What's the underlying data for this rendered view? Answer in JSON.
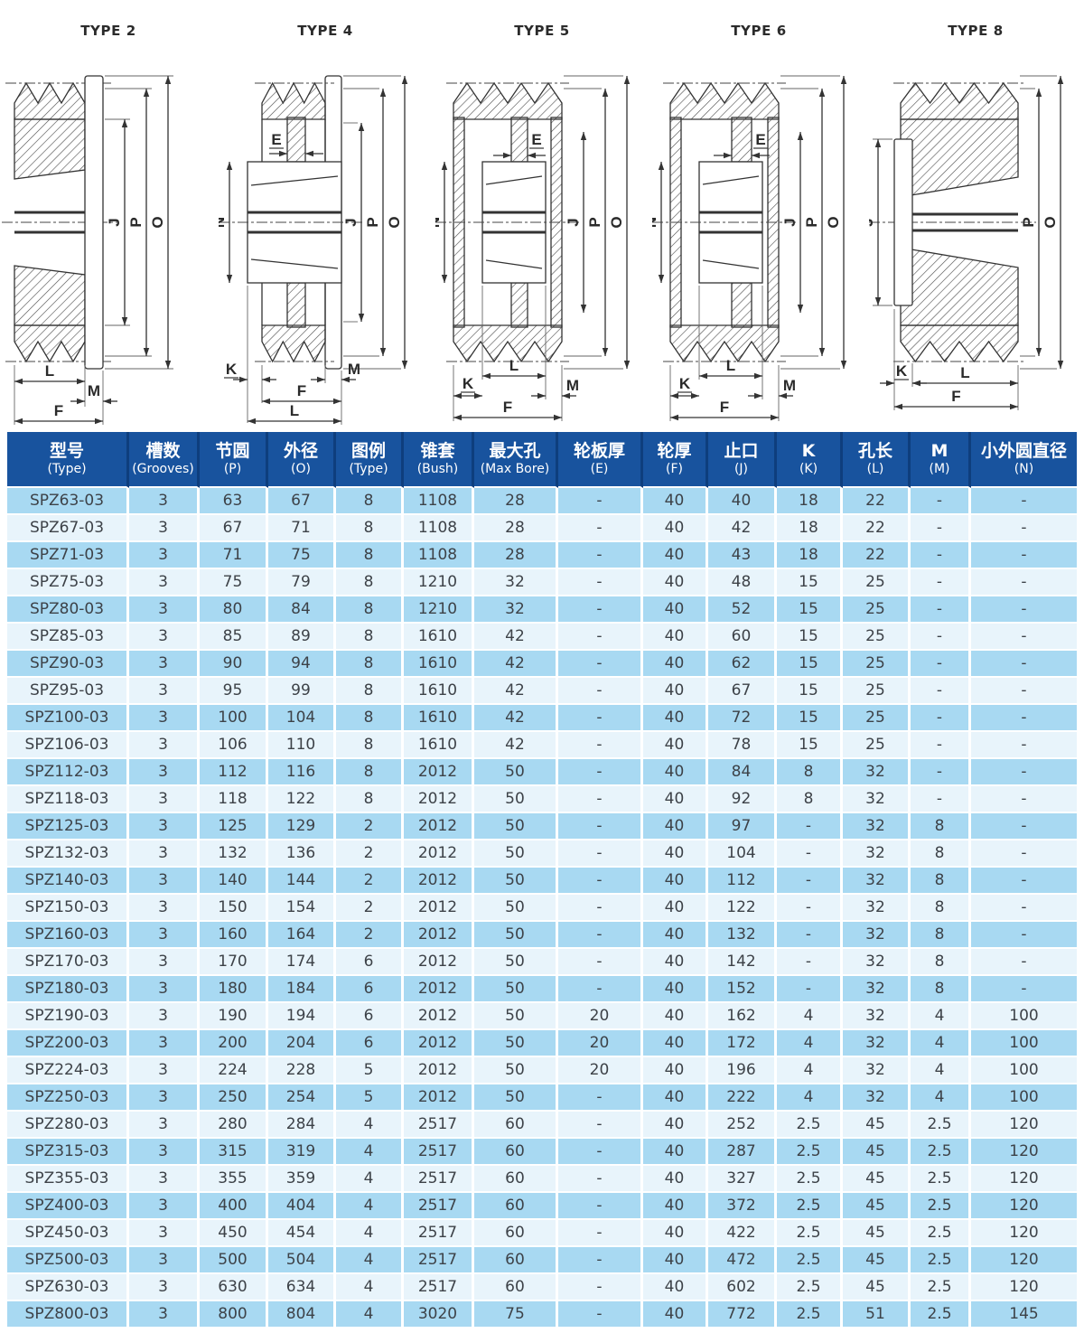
{
  "colors": {
    "header_bg": "#18539e",
    "header_divider": "#0e3e7d",
    "row_stripe_dark": "#a8d9f2",
    "row_stripe_light": "#e8f4fb",
    "cell_text": "#3d4248",
    "header_text": "#ffffff",
    "line_color": "#333333"
  },
  "diagrams": [
    {
      "title": "TYPE 2",
      "dims": {
        "J": "J",
        "P": "P",
        "O": "O",
        "L": "L",
        "M": "M",
        "F": "F"
      }
    },
    {
      "title": "TYPE 4",
      "dims": {
        "E": "E",
        "N": "N",
        "J": "J",
        "P": "P",
        "O": "O",
        "K": "K",
        "M": "M",
        "F": "F",
        "L": "L"
      }
    },
    {
      "title": "TYPE 5",
      "dims": {
        "E": "E",
        "N": "N",
        "J": "J",
        "P": "P",
        "O": "O",
        "K": "K",
        "L": "L",
        "M": "M",
        "F": "F"
      }
    },
    {
      "title": "TYPE 6",
      "dims": {
        "E": "E",
        "N": "N",
        "J": "J",
        "P": "P",
        "O": "O",
        "K": "K",
        "L": "L",
        "M": "M",
        "F": "F"
      }
    },
    {
      "title": "TYPE 8",
      "dims": {
        "J": "J",
        "P": "P",
        "O": "O",
        "K": "K",
        "L": "L",
        "F": "F"
      }
    }
  ],
  "table": {
    "headers": [
      {
        "zh": "型号",
        "en": "(Type)"
      },
      {
        "zh": "槽数",
        "en": "(Grooves)"
      },
      {
        "zh": "节圆",
        "en": "(P)"
      },
      {
        "zh": "外径",
        "en": "(O)"
      },
      {
        "zh": "图例",
        "en": "(Type)"
      },
      {
        "zh": "锥套",
        "en": "(Bush)"
      },
      {
        "zh": "最大孔",
        "en": "(Max Bore)"
      },
      {
        "zh": "轮板厚",
        "en": "(E)"
      },
      {
        "zh": "轮厚",
        "en": "(F)"
      },
      {
        "zh": "止口",
        "en": "(J)"
      },
      {
        "zh": "K",
        "en": "(K)"
      },
      {
        "zh": "孔长",
        "en": "(L)"
      },
      {
        "zh": "M",
        "en": "(M)"
      },
      {
        "zh": "小外圆直径",
        "en": "(N)"
      }
    ],
    "rows": [
      [
        "SPZ63-03",
        "3",
        "63",
        "67",
        "8",
        "1108",
        "28",
        "-",
        "40",
        "40",
        "18",
        "22",
        "-",
        "-"
      ],
      [
        "SPZ67-03",
        "3",
        "67",
        "71",
        "8",
        "1108",
        "28",
        "-",
        "40",
        "42",
        "18",
        "22",
        "-",
        "-"
      ],
      [
        "SPZ71-03",
        "3",
        "71",
        "75",
        "8",
        "1108",
        "28",
        "-",
        "40",
        "43",
        "18",
        "22",
        "-",
        "-"
      ],
      [
        "SPZ75-03",
        "3",
        "75",
        "79",
        "8",
        "1210",
        "32",
        "-",
        "40",
        "48",
        "15",
        "25",
        "-",
        "-"
      ],
      [
        "SPZ80-03",
        "3",
        "80",
        "84",
        "8",
        "1210",
        "32",
        "-",
        "40",
        "52",
        "15",
        "25",
        "-",
        "-"
      ],
      [
        "SPZ85-03",
        "3",
        "85",
        "89",
        "8",
        "1610",
        "42",
        "-",
        "40",
        "60",
        "15",
        "25",
        "-",
        "-"
      ],
      [
        "SPZ90-03",
        "3",
        "90",
        "94",
        "8",
        "1610",
        "42",
        "-",
        "40",
        "62",
        "15",
        "25",
        "-",
        "-"
      ],
      [
        "SPZ95-03",
        "3",
        "95",
        "99",
        "8",
        "1610",
        "42",
        "-",
        "40",
        "67",
        "15",
        "25",
        "-",
        "-"
      ],
      [
        "SPZ100-03",
        "3",
        "100",
        "104",
        "8",
        "1610",
        "42",
        "-",
        "40",
        "72",
        "15",
        "25",
        "-",
        "-"
      ],
      [
        "SPZ106-03",
        "3",
        "106",
        "110",
        "8",
        "1610",
        "42",
        "-",
        "40",
        "78",
        "15",
        "25",
        "-",
        "-"
      ],
      [
        "SPZ112-03",
        "3",
        "112",
        "116",
        "8",
        "2012",
        "50",
        "-",
        "40",
        "84",
        "8",
        "32",
        "-",
        "-"
      ],
      [
        "SPZ118-03",
        "3",
        "118",
        "122",
        "8",
        "2012",
        "50",
        "-",
        "40",
        "92",
        "8",
        "32",
        "-",
        "-"
      ],
      [
        "SPZ125-03",
        "3",
        "125",
        "129",
        "2",
        "2012",
        "50",
        "-",
        "40",
        "97",
        "-",
        "32",
        "8",
        "-"
      ],
      [
        "SPZ132-03",
        "3",
        "132",
        "136",
        "2",
        "2012",
        "50",
        "-",
        "40",
        "104",
        "-",
        "32",
        "8",
        "-"
      ],
      [
        "SPZ140-03",
        "3",
        "140",
        "144",
        "2",
        "2012",
        "50",
        "-",
        "40",
        "112",
        "-",
        "32",
        "8",
        "-"
      ],
      [
        "SPZ150-03",
        "3",
        "150",
        "154",
        "2",
        "2012",
        "50",
        "-",
        "40",
        "122",
        "-",
        "32",
        "8",
        "-"
      ],
      [
        "SPZ160-03",
        "3",
        "160",
        "164",
        "2",
        "2012",
        "50",
        "-",
        "40",
        "132",
        "-",
        "32",
        "8",
        "-"
      ],
      [
        "SPZ170-03",
        "3",
        "170",
        "174",
        "6",
        "2012",
        "50",
        "-",
        "40",
        "142",
        "-",
        "32",
        "8",
        "-"
      ],
      [
        "SPZ180-03",
        "3",
        "180",
        "184",
        "6",
        "2012",
        "50",
        "-",
        "40",
        "152",
        "-",
        "32",
        "8",
        "-"
      ],
      [
        "SPZ190-03",
        "3",
        "190",
        "194",
        "6",
        "2012",
        "50",
        "20",
        "40",
        "162",
        "4",
        "32",
        "4",
        "100"
      ],
      [
        "SPZ200-03",
        "3",
        "200",
        "204",
        "6",
        "2012",
        "50",
        "20",
        "40",
        "172",
        "4",
        "32",
        "4",
        "100"
      ],
      [
        "SPZ224-03",
        "3",
        "224",
        "228",
        "5",
        "2012",
        "50",
        "20",
        "40",
        "196",
        "4",
        "32",
        "4",
        "100"
      ],
      [
        "SPZ250-03",
        "3",
        "250",
        "254",
        "5",
        "2012",
        "50",
        "-",
        "40",
        "222",
        "4",
        "32",
        "4",
        "100"
      ],
      [
        "SPZ280-03",
        "3",
        "280",
        "284",
        "4",
        "2517",
        "60",
        "-",
        "40",
        "252",
        "2.5",
        "45",
        "2.5",
        "120"
      ],
      [
        "SPZ315-03",
        "3",
        "315",
        "319",
        "4",
        "2517",
        "60",
        "-",
        "40",
        "287",
        "2.5",
        "45",
        "2.5",
        "120"
      ],
      [
        "SPZ355-03",
        "3",
        "355",
        "359",
        "4",
        "2517",
        "60",
        "-",
        "40",
        "327",
        "2.5",
        "45",
        "2.5",
        "120"
      ],
      [
        "SPZ400-03",
        "3",
        "400",
        "404",
        "4",
        "2517",
        "60",
        "-",
        "40",
        "372",
        "2.5",
        "45",
        "2.5",
        "120"
      ],
      [
        "SPZ450-03",
        "3",
        "450",
        "454",
        "4",
        "2517",
        "60",
        "-",
        "40",
        "422",
        "2.5",
        "45",
        "2.5",
        "120"
      ],
      [
        "SPZ500-03",
        "3",
        "500",
        "504",
        "4",
        "2517",
        "60",
        "-",
        "40",
        "472",
        "2.5",
        "45",
        "2.5",
        "120"
      ],
      [
        "SPZ630-03",
        "3",
        "630",
        "634",
        "4",
        "2517",
        "60",
        "-",
        "40",
        "602",
        "2.5",
        "45",
        "2.5",
        "120"
      ],
      [
        "SPZ800-03",
        "3",
        "800",
        "804",
        "4",
        "3020",
        "75",
        "-",
        "40",
        "772",
        "2.5",
        "51",
        "2.5",
        "145"
      ]
    ]
  }
}
